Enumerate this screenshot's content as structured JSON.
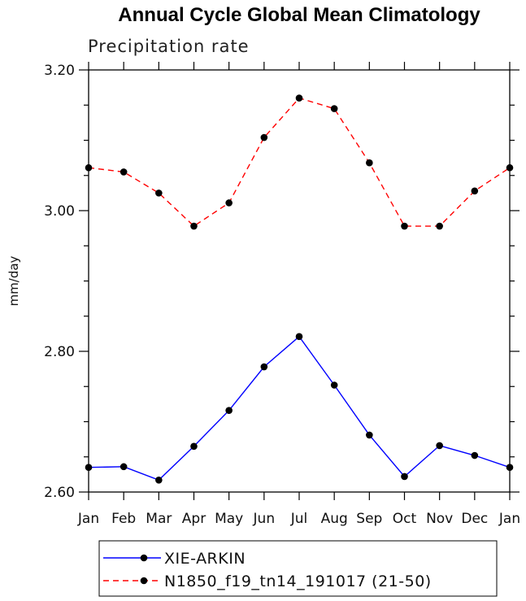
{
  "chart_data": {
    "type": "line",
    "title": "Annual Cycle Global Mean Climatology",
    "subtitle": "Precipitation rate",
    "xlabel": "",
    "ylabel": "mm/day",
    "categories": [
      "Jan",
      "Feb",
      "Mar",
      "Apr",
      "May",
      "Jun",
      "Jul",
      "Aug",
      "Sep",
      "Oct",
      "Nov",
      "Dec",
      "Jan"
    ],
    "ylim": [
      2.6,
      3.2
    ],
    "yticks": [
      "2.60",
      "2.80",
      "3.00",
      "3.20"
    ],
    "legend_position": "bottom",
    "series": [
      {
        "name": "XIE-ARKIN",
        "color": "#0000ff",
        "line_style": "solid",
        "marker": "filled-circle",
        "values": [
          2.635,
          2.636,
          2.617,
          2.665,
          2.716,
          2.778,
          2.821,
          2.752,
          2.681,
          2.622,
          2.666,
          2.652,
          2.635
        ]
      },
      {
        "name": "N1850_f19_tn14_191017 (21-50)",
        "color": "#ff0000",
        "line_style": "dashed",
        "marker": "filled-circle",
        "values": [
          3.061,
          3.055,
          3.025,
          2.978,
          3.011,
          3.104,
          3.16,
          3.145,
          3.068,
          2.978,
          2.978,
          3.028,
          3.061
        ]
      }
    ]
  }
}
